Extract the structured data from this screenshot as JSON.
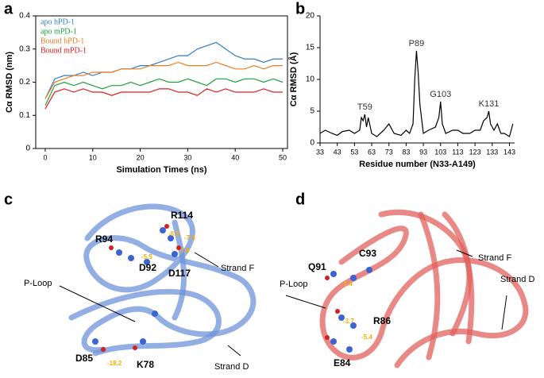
{
  "chart_data": [
    {
      "type": "line",
      "panel_label": "a",
      "ylabel": "Cα RMSD (nm)",
      "xlabel": "Simulation Times (ns)",
      "x": [
        0,
        2,
        4,
        6,
        8,
        10,
        12,
        14,
        16,
        18,
        20,
        22,
        24,
        26,
        28,
        30,
        32,
        34,
        36,
        38,
        40,
        42,
        44,
        46,
        48,
        50
      ],
      "series": [
        {
          "name": "apo hPD-1",
          "color": "#2f7fc8",
          "values": [
            0.15,
            0.21,
            0.22,
            0.22,
            0.23,
            0.22,
            0.23,
            0.23,
            0.24,
            0.24,
            0.25,
            0.25,
            0.26,
            0.27,
            0.28,
            0.28,
            0.3,
            0.31,
            0.32,
            0.3,
            0.28,
            0.27,
            0.27,
            0.26,
            0.27,
            0.27
          ]
        },
        {
          "name": "apo mPD-1",
          "color": "#1aa33a",
          "values": [
            0.13,
            0.19,
            0.2,
            0.19,
            0.2,
            0.19,
            0.18,
            0.19,
            0.19,
            0.2,
            0.19,
            0.2,
            0.21,
            0.2,
            0.2,
            0.21,
            0.2,
            0.19,
            0.21,
            0.21,
            0.2,
            0.21,
            0.21,
            0.2,
            0.21,
            0.2
          ]
        },
        {
          "name": "Bound hPD-1",
          "color": "#ee7d22",
          "values": [
            0.15,
            0.2,
            0.21,
            0.22,
            0.22,
            0.23,
            0.23,
            0.23,
            0.24,
            0.24,
            0.24,
            0.25,
            0.25,
            0.25,
            0.26,
            0.25,
            0.25,
            0.25,
            0.26,
            0.25,
            0.24,
            0.24,
            0.25,
            0.24,
            0.25,
            0.25
          ]
        },
        {
          "name": "Bound mPD-1",
          "color": "#e41a1c",
          "values": [
            0.12,
            0.17,
            0.18,
            0.17,
            0.18,
            0.17,
            0.17,
            0.16,
            0.17,
            0.17,
            0.17,
            0.17,
            0.18,
            0.18,
            0.17,
            0.17,
            0.16,
            0.18,
            0.17,
            0.18,
            0.17,
            0.17,
            0.17,
            0.18,
            0.17,
            0.17
          ]
        }
      ],
      "xlim": [
        -2,
        51
      ],
      "xticks": [
        0,
        10,
        20,
        30,
        40,
        50
      ],
      "ylim": [
        0,
        0.4
      ],
      "yticks": [
        0,
        0.1,
        0.2,
        0.3,
        0.4
      ],
      "legend": "top-left"
    },
    {
      "type": "line",
      "panel_label": "b",
      "ylabel": "Cα RMSD (Å)",
      "xlabel": "Residue number (N33-A149)",
      "color": "#000000",
      "x": [
        33,
        36,
        40,
        43,
        46,
        50,
        53,
        56,
        57,
        58,
        59,
        60,
        61,
        63,
        66,
        70,
        73,
        76,
        80,
        83,
        85,
        87,
        88,
        89,
        90,
        91,
        93,
        96,
        100,
        102,
        103,
        104,
        106,
        110,
        113,
        116,
        120,
        123,
        126,
        128,
        130,
        131,
        132,
        134,
        136,
        138,
        140,
        143,
        145
      ],
      "values": [
        1.5,
        2,
        1.5,
        1.2,
        1.8,
        2,
        1.5,
        2,
        4,
        3.5,
        4.5,
        2.5,
        4,
        1.5,
        1,
        2,
        3,
        1.5,
        1.2,
        2,
        1.5,
        3,
        10,
        14.5,
        11,
        6,
        1.5,
        2,
        2.5,
        4,
        6.5,
        3,
        1.5,
        2,
        2,
        1.5,
        1.5,
        2,
        2,
        3.5,
        4,
        5,
        3,
        2,
        3,
        1.5,
        1.5,
        1,
        3
      ],
      "annotations": [
        {
          "text": "T59",
          "x": 59,
          "y": 4.5
        },
        {
          "text": "P89",
          "x": 89,
          "y": 14.5
        },
        {
          "text": "G103",
          "x": 103,
          "y": 6.5
        },
        {
          "text": "K131",
          "x": 131,
          "y": 5
        }
      ],
      "xlim": [
        33,
        146
      ],
      "xticks": [
        33,
        43,
        53,
        63,
        73,
        83,
        93,
        103,
        113,
        123,
        133,
        143
      ],
      "ylim": [
        0,
        20
      ],
      "yticks": [
        0,
        5,
        10,
        15,
        20
      ]
    }
  ],
  "structure_panels": [
    {
      "panel_label": "c",
      "labels": [
        "R114",
        "R94",
        "D92",
        "D117",
        "Strand F",
        "P-Loop",
        "D85",
        "K78",
        "Strand D"
      ],
      "energies": [
        "-8.6",
        "-7.4",
        "-7.8",
        "-5.5",
        "-18.2"
      ]
    },
    {
      "panel_label": "d",
      "labels": [
        "C93",
        "Q91",
        "Strand F",
        "Strand D",
        "P-Loop",
        "R86",
        "E84"
      ],
      "energies": [
        "-1.4",
        "-3.7",
        "-5.4"
      ]
    }
  ]
}
